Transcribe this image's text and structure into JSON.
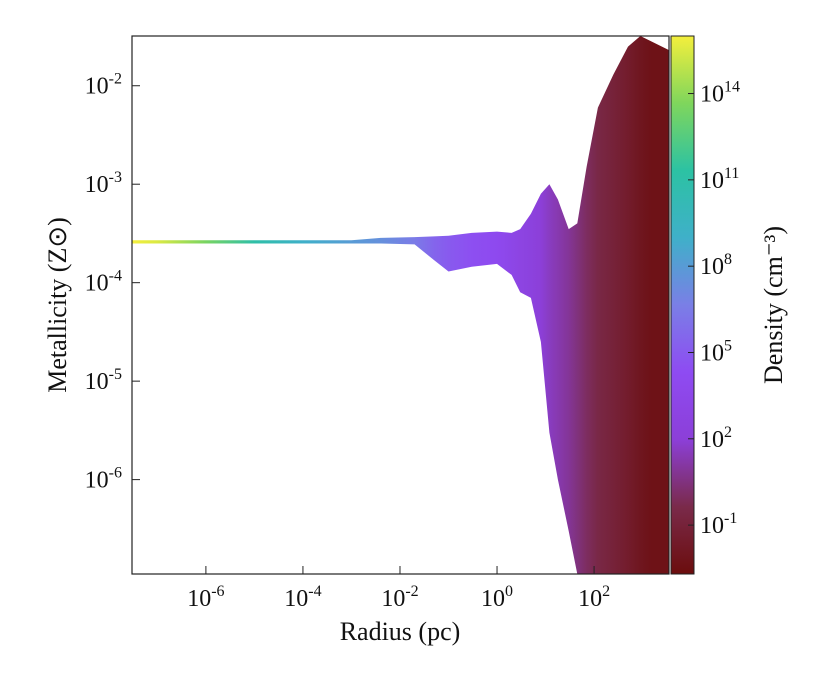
{
  "chart_data": {
    "type": "heatmap",
    "title": "",
    "xlabel": "Radius (pc)",
    "ylabel": "Metallicity (Z⊙)",
    "colorbar_label": "Density (cm⁻³)",
    "x_scale": "log",
    "y_scale": "log",
    "xlim": [
      3e-08,
      3500
    ],
    "ylim": [
      1.1e-07,
      0.032
    ],
    "x_ticks": [
      {
        "value": 1e-06,
        "base": "10",
        "exp": "-6"
      },
      {
        "value": 0.0001,
        "base": "10",
        "exp": "-4"
      },
      {
        "value": 0.01,
        "base": "10",
        "exp": "-2"
      },
      {
        "value": 1,
        "base": "10",
        "exp": "0"
      },
      {
        "value": 100,
        "base": "10",
        "exp": "2"
      }
    ],
    "y_ticks": [
      {
        "value": 1e-06,
        "base": "10",
        "exp": "-6"
      },
      {
        "value": 1e-05,
        "base": "10",
        "exp": "-5"
      },
      {
        "value": 0.0001,
        "base": "10",
        "exp": "-4"
      },
      {
        "value": 0.001,
        "base": "10",
        "exp": "-3"
      },
      {
        "value": 0.01,
        "base": "10",
        "exp": "-2"
      }
    ],
    "colorbar": {
      "scale": "log",
      "range": [
        0.002,
        1e+16
      ],
      "colormap": [
        "#6b0d0d",
        "#7a2a4a",
        "#8c3fd8",
        "#8e4bf2",
        "#7a7fe6",
        "#3fb0c9",
        "#2cc2a3",
        "#7fd65c",
        "#f4ef3c"
      ],
      "ticks": [
        {
          "value": 0.1,
          "base": "10",
          "exp": "-1"
        },
        {
          "value": 100,
          "base": "10",
          "exp": "2"
        },
        {
          "value": 100000.0,
          "base": "10",
          "exp": "5"
        },
        {
          "value": 100000000.0,
          "base": "10",
          "exp": "8"
        },
        {
          "value": 100000000000.0,
          "base": "10",
          "exp": "11"
        },
        {
          "value": 100000000000000.0,
          "base": "10",
          "exp": "14"
        }
      ]
    },
    "grid": false,
    "series": [
      {
        "columns": [
          {
            "r": 3e-08,
            "zmin": 0.00025,
            "zmax": 0.00027,
            "density": 1e+16
          },
          {
            "r": 1e-07,
            "zmin": 0.00025,
            "zmax": 0.00027,
            "density": 3000000000000000.0
          },
          {
            "r": 1e-06,
            "zmin": 0.00025,
            "zmax": 0.00027,
            "density": 30000000000000.0
          },
          {
            "r": 1e-05,
            "zmin": 0.00025,
            "zmax": 0.00027,
            "density": 100000000000.0
          },
          {
            "r": 0.0001,
            "zmin": 0.00025,
            "zmax": 0.00027,
            "density": 1000000000.0
          },
          {
            "r": 0.001,
            "zmin": 0.00025,
            "zmax": 0.00027,
            "density": 100000000.0
          },
          {
            "r": 0.004,
            "zmin": 0.00025,
            "zmax": 0.000285,
            "density": 30000000.0
          },
          {
            "r": 0.02,
            "zmin": 0.000245,
            "zmax": 0.00029,
            "density": 3000000.0
          },
          {
            "r": 0.05,
            "zmin": 0.00017,
            "zmax": 0.000295,
            "density": 300000.0
          },
          {
            "r": 0.1,
            "zmin": 0.00013,
            "zmax": 0.0003,
            "density": 100000.0
          },
          {
            "r": 0.3,
            "zmin": 0.000145,
            "zmax": 0.00032,
            "density": 30000.0
          },
          {
            "r": 1,
            "zmin": 0.000155,
            "zmax": 0.00033,
            "density": 10000.0
          },
          {
            "r": 2,
            "zmin": 0.00012,
            "zmax": 0.00032,
            "density": 2000.0
          },
          {
            "r": 3,
            "zmin": 8e-05,
            "zmax": 0.00035,
            "density": 800.0
          },
          {
            "r": 5,
            "zmin": 7e-05,
            "zmax": 0.0005,
            "density": 300.0
          },
          {
            "r": 8,
            "zmin": 2.5e-05,
            "zmax": 0.0008,
            "density": 100.0
          },
          {
            "r": 12,
            "zmin": 3e-06,
            "zmax": 0.001,
            "density": 40
          },
          {
            "r": 18,
            "zmin": 1e-06,
            "zmax": 0.0007,
            "density": 20
          },
          {
            "r": 30,
            "zmin": 3e-07,
            "zmax": 0.00035,
            "density": 8
          },
          {
            "r": 45,
            "zmin": 1.1e-07,
            "zmax": 0.0004,
            "density": 3
          },
          {
            "r": 70,
            "zmin": 1.1e-07,
            "zmax": 0.0015,
            "density": 1
          },
          {
            "r": 120,
            "zmin": 1.1e-07,
            "zmax": 0.006,
            "density": 0.3
          },
          {
            "r": 250,
            "zmin": 1.1e-07,
            "zmax": 0.013,
            "density": 0.1
          },
          {
            "r": 500,
            "zmin": 1.1e-07,
            "zmax": 0.025,
            "density": 0.03
          },
          {
            "r": 900,
            "zmin": 1.1e-07,
            "zmax": 0.032,
            "density": 0.01
          },
          {
            "r": 1500,
            "zmin": 1.1e-07,
            "zmax": 0.02,
            "density": 0.005
          }
        ]
      }
    ]
  }
}
